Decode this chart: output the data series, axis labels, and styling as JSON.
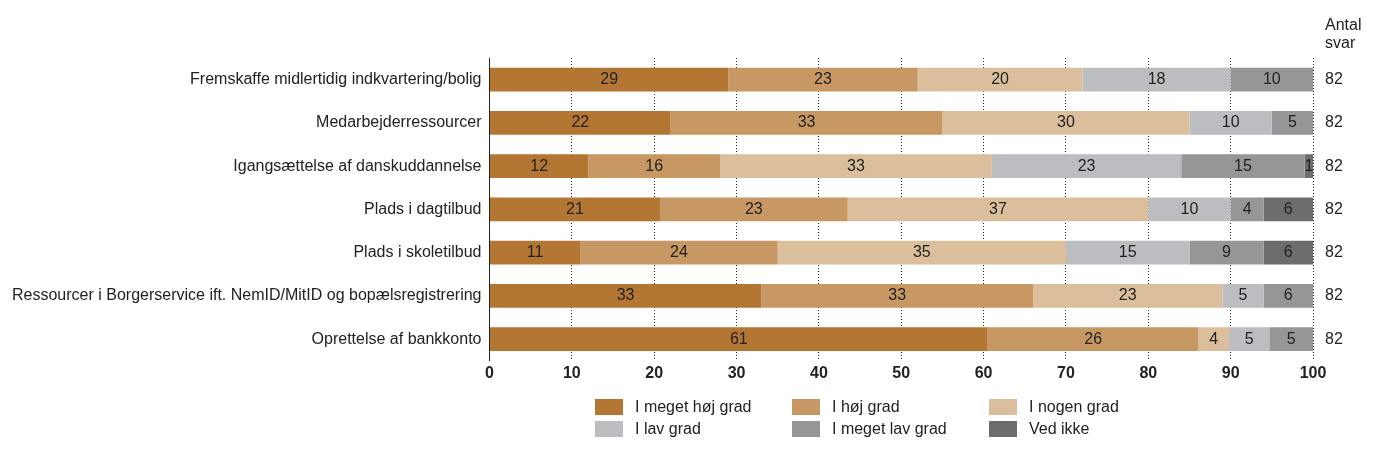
{
  "chart_data": {
    "type": "bar",
    "orientation": "horizontal",
    "stacked": true,
    "categories": [
      "Fremskaffe midlertidig indkvartering/bolig",
      "Medarbejderressourcer",
      "Igangsættelse af danskuddannelse",
      "Plads i dagtilbud",
      "Plads i skoletilbud",
      "Ressourcer i Borgerservice ift. NemID/MitID og bopælsregistrering",
      "Oprettelse af bankkonto"
    ],
    "series": [
      {
        "name": "I meget høj grad",
        "color": "#b37733",
        "values": [
          29,
          22,
          12,
          20.7,
          11,
          33,
          60.5
        ],
        "value_labels": [
          "29",
          "22",
          "12",
          "21",
          "11",
          "33",
          "61"
        ]
      },
      {
        "name": "I høj grad",
        "color": "#c79764",
        "values": [
          23,
          33,
          16,
          22.8,
          24,
          33,
          25.6
        ],
        "value_labels": [
          "23",
          "33",
          "16",
          "23",
          "24",
          "33",
          "26"
        ]
      },
      {
        "name": "I nogen grad",
        "color": "#dbbe9b",
        "values": [
          20,
          30,
          33,
          36.5,
          35,
          23,
          3.7
        ],
        "value_labels": [
          "20",
          "30",
          "33",
          "37",
          "35",
          "23",
          "4"
        ]
      },
      {
        "name": "I lav grad",
        "color": "#bcbdc0",
        "values": [
          18,
          10,
          23,
          10,
          15,
          5,
          4.9
        ],
        "value_labels": [
          "18",
          "10",
          "23",
          "10",
          "15",
          "5",
          "5"
        ]
      },
      {
        "name": "I meget lav grad",
        "color": "#959698",
        "values": [
          10,
          5,
          15,
          4,
          9,
          6,
          5.3
        ],
        "value_labels": [
          "10",
          "5",
          "15",
          "4",
          "9",
          "6",
          "5"
        ]
      },
      {
        "name": "Ved ikke",
        "color": "#6c6d6f",
        "values": [
          null,
          null,
          1,
          6,
          6,
          null,
          null
        ],
        "value_labels": [
          null,
          null,
          "1",
          "6",
          "6",
          null,
          null
        ]
      }
    ],
    "xlim": [
      0,
      100
    ],
    "xticks": [
      0,
      10,
      20,
      30,
      40,
      50,
      60,
      70,
      80,
      90,
      100
    ],
    "grid": "x",
    "legend": "bottom",
    "annotations": [
      "Antal svar",
      "82",
      "82",
      "82",
      "82",
      "82",
      "82",
      "82"
    ]
  }
}
